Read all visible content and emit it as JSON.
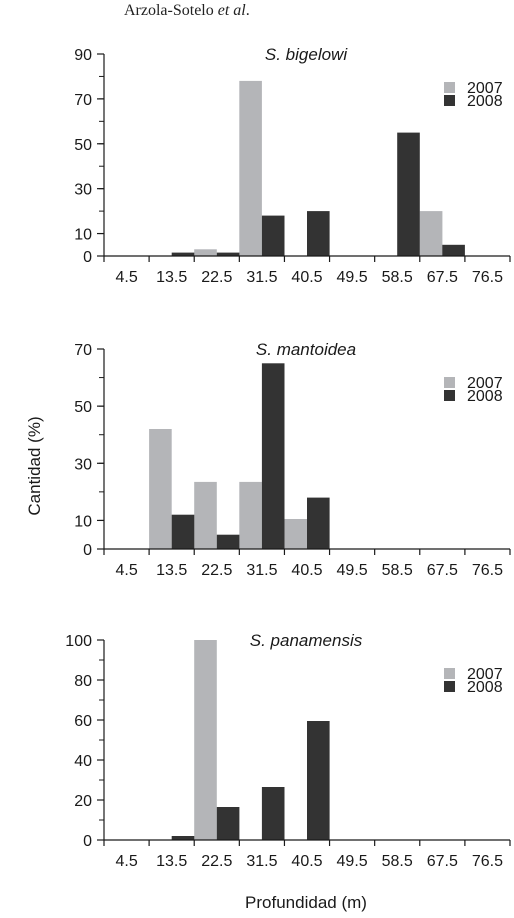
{
  "header": {
    "authors": "Arzola-Sotelo ",
    "et_al": "et al",
    "dot": "."
  },
  "colors": {
    "series_2007": "#b4b5b8",
    "series_2008": "#333333",
    "axis": "#1a1a1a"
  },
  "ylabel": "Cantidad (%)",
  "xlabel": "Profundidad (m)",
  "chart_data": [
    {
      "type": "bar",
      "title": "S. bigelowi",
      "categories": [
        "4.5",
        "13.5",
        "22.5",
        "31.5",
        "40.5",
        "49.5",
        "58.5",
        "67.5",
        "76.5"
      ],
      "yticks": [
        0,
        10,
        30,
        50,
        70,
        90
      ],
      "ylim": [
        0,
        90
      ],
      "legend_position": "right",
      "series": [
        {
          "name": "2007",
          "values": [
            0,
            0,
            3,
            78,
            0,
            0,
            0,
            20,
            0
          ]
        },
        {
          "name": "2008",
          "values": [
            0,
            1.5,
            1.5,
            18,
            20,
            0,
            55,
            5,
            0
          ]
        }
      ]
    },
    {
      "type": "bar",
      "title": "S. mantoidea",
      "categories": [
        "4.5",
        "13.5",
        "22.5",
        "31.5",
        "40.5",
        "49.5",
        "58.5",
        "67.5",
        "76.5"
      ],
      "yticks": [
        0,
        10,
        30,
        50,
        70
      ],
      "ylim": [
        0,
        70
      ],
      "legend_position": "right",
      "series": [
        {
          "name": "2007",
          "values": [
            0,
            42,
            23.5,
            23.5,
            10.5,
            0,
            0,
            0,
            0
          ]
        },
        {
          "name": "2008",
          "values": [
            0,
            12,
            5,
            65,
            18,
            0,
            0,
            0,
            0
          ]
        }
      ]
    },
    {
      "type": "bar",
      "title": "S. panamensis",
      "categories": [
        "4.5",
        "13.5",
        "22.5",
        "31.5",
        "40.5",
        "49.5",
        "58.5",
        "67.5",
        "76.5"
      ],
      "yticks": [
        0,
        20,
        40,
        60,
        80,
        100
      ],
      "ylim": [
        0,
        100
      ],
      "legend_position": "right",
      "series": [
        {
          "name": "2007",
          "values": [
            0,
            0,
            100,
            0,
            0,
            0,
            0,
            0,
            0
          ]
        },
        {
          "name": "2008",
          "values": [
            0,
            2,
            16.5,
            26.5,
            59.5,
            0,
            0,
            0,
            0
          ]
        }
      ]
    }
  ]
}
